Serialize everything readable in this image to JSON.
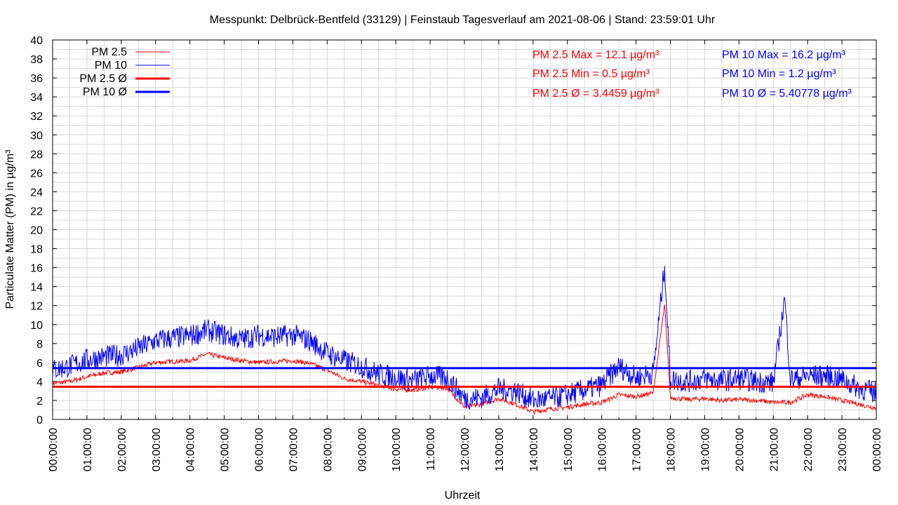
{
  "chart_data": {
    "type": "line",
    "title": "Messpunkt: Delbrück-Bentfeld (33129) | Feinstaub Tagesverlauf am 2021-08-06 | Stand: 23:59:01 Uhr",
    "xlabel": "Uhrzeit",
    "ylabel": "Particulate Matter (PM) in µg/m³",
    "ylim": [
      0,
      40
    ],
    "yticks": [
      0,
      2,
      4,
      6,
      8,
      10,
      12,
      14,
      16,
      18,
      20,
      22,
      24,
      26,
      28,
      30,
      32,
      34,
      36,
      38,
      40
    ],
    "xlim": [
      "00:00:00",
      "24:00:00"
    ],
    "xticks": [
      "00:00:00",
      "01:00:00",
      "02:00:00",
      "03:00:00",
      "04:00:00",
      "05:00:00",
      "06:00:00",
      "07:00:00",
      "08:00:00",
      "09:00:00",
      "10:00:00",
      "11:00:00",
      "12:00:00",
      "13:00:00",
      "14:00:00",
      "15:00:00",
      "16:00:00",
      "17:00:00",
      "18:00:00",
      "19:00:00",
      "20:00:00",
      "21:00:00",
      "22:00:00",
      "23:00:00",
      "00:00:00"
    ],
    "grid": true,
    "legend_position": "top-left",
    "legend": [
      "PM 2.5",
      "PM 10",
      "PM 2.5 Ø",
      "PM 10 Ø"
    ],
    "series": [
      {
        "name": "PM 2.5",
        "color": "#ff0000",
        "x": [
          "00:00",
          "00:30",
          "01:00",
          "01:30",
          "02:00",
          "02:30",
          "03:00",
          "03:30",
          "04:00",
          "04:30",
          "05:00",
          "05:30",
          "06:00",
          "06:30",
          "07:00",
          "07:30",
          "08:00",
          "08:30",
          "09:00",
          "09:30",
          "10:00",
          "10:30",
          "11:00",
          "11:30",
          "12:00",
          "12:30",
          "13:00",
          "13:30",
          "14:00",
          "14:30",
          "15:00",
          "15:30",
          "16:00",
          "16:30",
          "17:00",
          "17:30",
          "17:50",
          "18:00",
          "18:30",
          "19:00",
          "19:30",
          "20:00",
          "20:30",
          "21:00",
          "21:30",
          "22:00",
          "22:30",
          "23:00",
          "23:30",
          "24:00"
        ],
        "values": [
          3.8,
          4.0,
          4.5,
          4.9,
          5.0,
          5.5,
          6.0,
          6.1,
          6.2,
          6.9,
          6.5,
          6.2,
          6.0,
          6.1,
          6.2,
          5.9,
          5.2,
          4.3,
          4.0,
          3.6,
          3.2,
          3.1,
          3.4,
          3.3,
          1.3,
          1.6,
          2.2,
          1.6,
          0.8,
          1.1,
          1.3,
          1.6,
          1.8,
          2.6,
          2.4,
          2.8,
          12.1,
          2.3,
          2.1,
          2.2,
          2.0,
          2.1,
          2.0,
          1.8,
          1.8,
          2.6,
          2.4,
          2.0,
          1.6,
          1.2
        ]
      },
      {
        "name": "PM 10",
        "color": "#0000ff",
        "x": [
          "00:00",
          "00:30",
          "01:00",
          "01:30",
          "02:00",
          "02:30",
          "03:00",
          "03:30",
          "04:00",
          "04:30",
          "05:00",
          "05:30",
          "06:00",
          "06:30",
          "07:00",
          "07:30",
          "08:00",
          "08:30",
          "09:00",
          "09:30",
          "10:00",
          "10:30",
          "11:00",
          "11:30",
          "12:00",
          "12:30",
          "13:00",
          "13:30",
          "14:00",
          "14:30",
          "15:00",
          "15:30",
          "16:00",
          "16:30",
          "17:00",
          "17:30",
          "17:50",
          "18:00",
          "18:30",
          "19:00",
          "19:30",
          "20:00",
          "20:30",
          "21:00",
          "21:20",
          "21:30",
          "22:00",
          "22:30",
          "23:00",
          "23:30",
          "24:00"
        ],
        "values": [
          5.2,
          5.6,
          6.3,
          6.6,
          6.8,
          7.5,
          8.3,
          8.6,
          8.8,
          9.4,
          8.9,
          8.4,
          8.9,
          8.7,
          8.9,
          8.3,
          7.0,
          6.2,
          5.6,
          4.8,
          4.4,
          4.1,
          4.6,
          4.4,
          2.2,
          2.3,
          3.2,
          3.0,
          2.0,
          2.2,
          2.6,
          3.1,
          3.6,
          5.6,
          4.4,
          4.9,
          16.2,
          4.2,
          4.0,
          4.3,
          4.1,
          4.3,
          4.0,
          3.9,
          12.8,
          4.2,
          4.6,
          4.6,
          4.2,
          3.3,
          2.8
        ]
      },
      {
        "name": "PM 2.5 Ø",
        "color": "#ff0000",
        "x": [
          "00:00",
          "24:00"
        ],
        "values": [
          3.4459,
          3.4459
        ]
      },
      {
        "name": "PM 10 Ø",
        "color": "#0000ff",
        "x": [
          "00:00",
          "24:00"
        ],
        "values": [
          5.40778,
          5.40778
        ]
      }
    ],
    "annotations": {
      "pm25_max": "PM 2.5 Max = 12.1 µg/m³",
      "pm25_min": "PM 2.5 Min = 0.5 µg/m³",
      "pm25_avg": "PM 2.5 Ø = 3.4459 µg/m³",
      "pm10_max": "PM 10 Max = 16.2 µg/m³",
      "pm10_min": "PM 10 Min = 1.2 µg/m³",
      "pm10_avg": "PM 10 Ø = 5.40778 µg/m³"
    }
  },
  "colors": {
    "pm25": "#ff0000",
    "pm10": "#0000ff",
    "grid": "#d8d8d8",
    "axis": "#000000"
  }
}
